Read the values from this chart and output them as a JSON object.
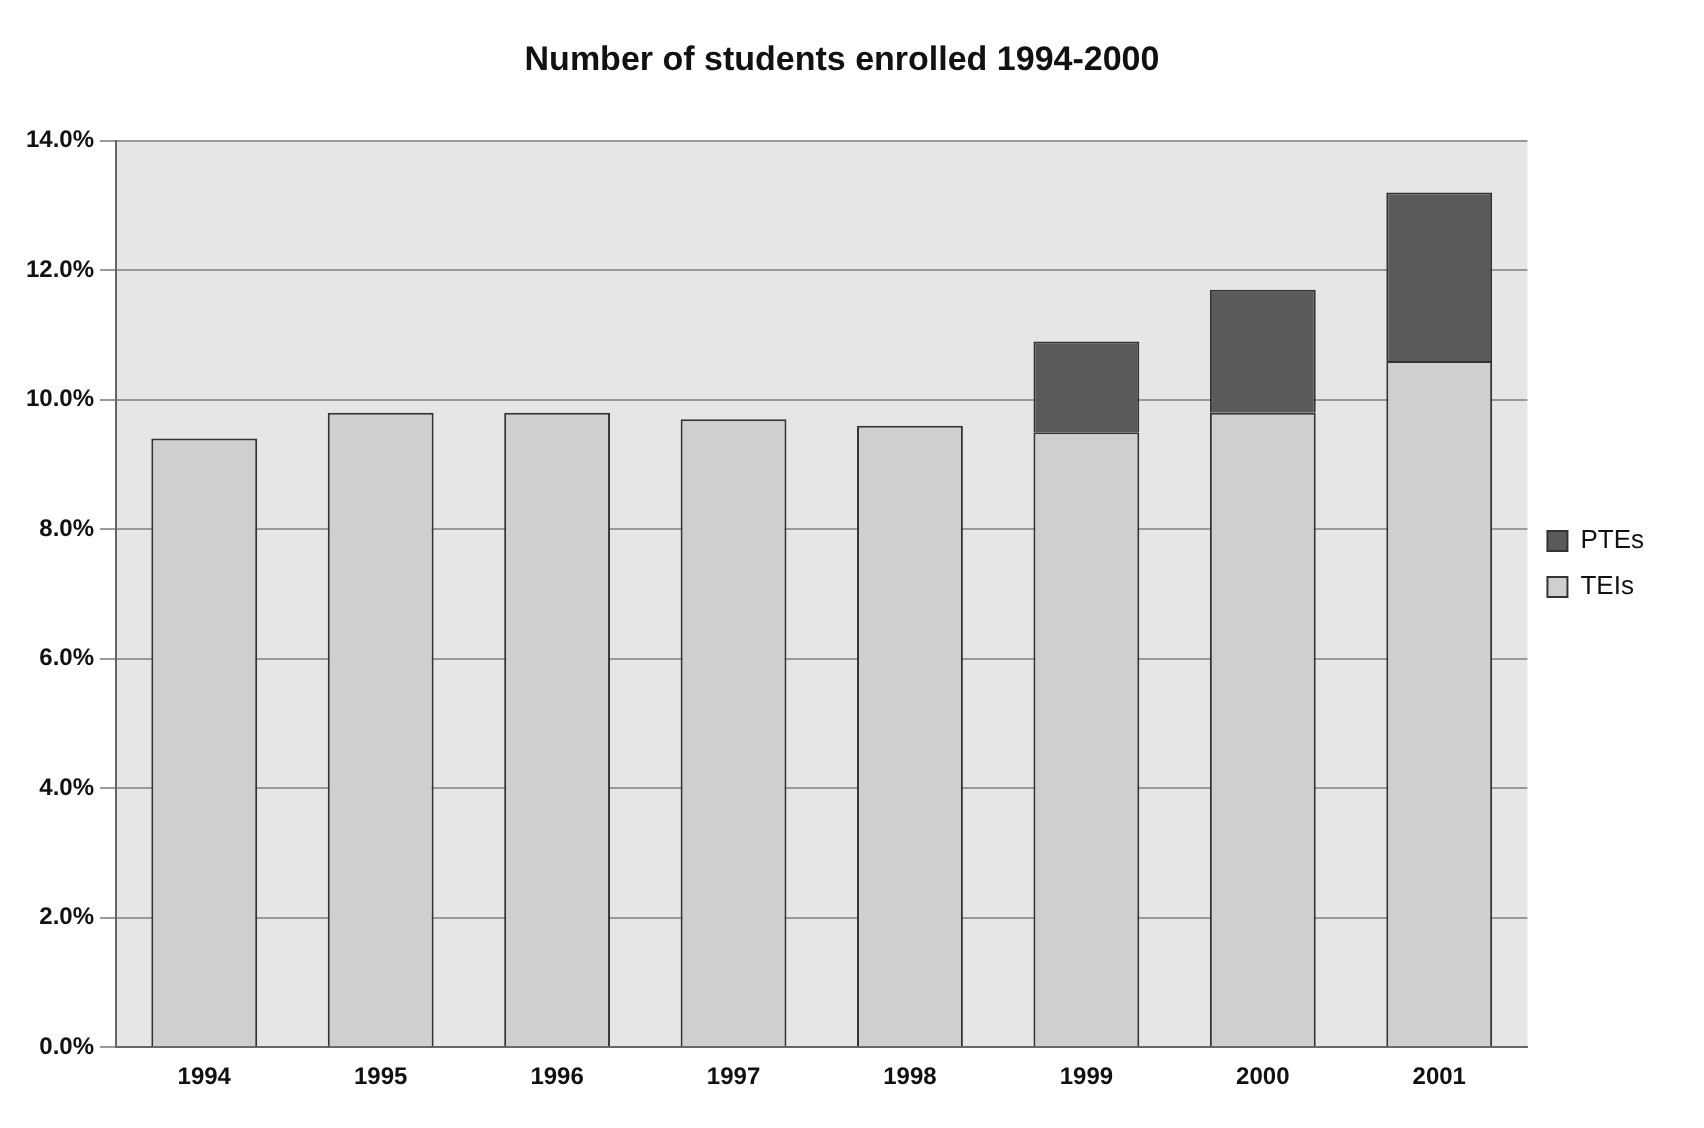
{
  "chart_data": {
    "type": "bar",
    "title": "Number of students enrolled 1994-2000",
    "categories": [
      "1994",
      "1995",
      "1996",
      "1997",
      "1998",
      "1999",
      "2000",
      "2001"
    ],
    "stacked": true,
    "series": [
      {
        "name": "TEIs",
        "color": "#cfcfcf",
        "values": [
          9.4,
          9.8,
          9.8,
          9.7,
          9.6,
          9.5,
          9.8,
          10.6
        ]
      },
      {
        "name": "PTEs",
        "color": "#5a5a5a",
        "values": [
          0,
          0,
          0,
          0,
          0,
          1.4,
          1.9,
          2.6
        ]
      }
    ],
    "ylim": [
      0,
      14
    ],
    "yticks": [
      {
        "value": 0,
        "label": "0.0%"
      },
      {
        "value": 2,
        "label": "2.0%"
      },
      {
        "value": 4,
        "label": "4.0%"
      },
      {
        "value": 6,
        "label": "6.0%"
      },
      {
        "value": 8,
        "label": "8.0%"
      },
      {
        "value": 10,
        "label": "10.0%"
      },
      {
        "value": 12,
        "label": "12.0%"
      },
      {
        "value": 14,
        "label": "14.0%"
      }
    ],
    "grid": "y",
    "legend": "right"
  }
}
